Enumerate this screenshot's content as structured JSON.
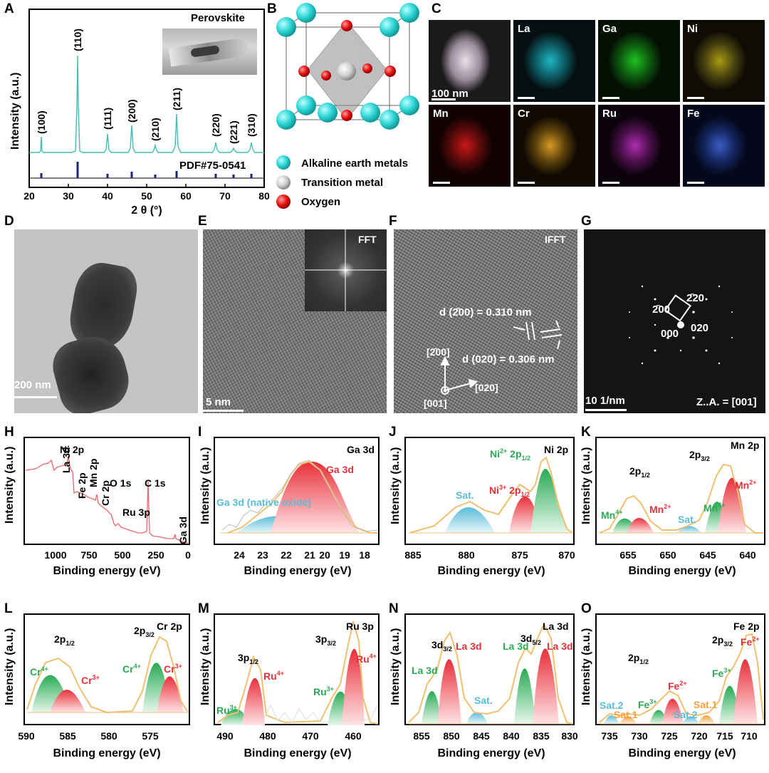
{
  "panel_letters": [
    "A",
    "B",
    "C",
    "D",
    "E",
    "F",
    "G",
    "H",
    "I",
    "J",
    "K",
    "L",
    "M",
    "N",
    "O"
  ],
  "panelA": {
    "inset_title": "Perovskite",
    "ylabel": "Intensity (a.u.)",
    "xlabel": "2 θ (°)",
    "xticks": [
      "20",
      "30",
      "40",
      "50",
      "60",
      "70",
      "80"
    ],
    "ref_label": "PDF#75-0541",
    "peak_labels": [
      "(100)",
      "(110)",
      "(111)",
      "(200)",
      "(210)",
      "(211)",
      "(220)",
      "(221)",
      "(310)"
    ]
  },
  "panelB": {
    "legend": [
      "Alkaline earth metals",
      "Transition metal",
      "Oxygen"
    ]
  },
  "panelC": {
    "scale": "100 nm",
    "elements": [
      "La",
      "Ga",
      "Ni",
      "Mn",
      "Cr",
      "Ru",
      "Fe"
    ]
  },
  "panelD": {
    "scale": "200 nm"
  },
  "panelE": {
    "scale": "5 nm",
    "inset": "FFT"
  },
  "panelF": {
    "title": "IFFT",
    "d200": "d (2̄00) = 0.310 nm",
    "d020": "d (020) = 0.306 nm",
    "dir_200": "[2̄00]",
    "dir_020": "[020]",
    "dir_001": "[001]"
  },
  "panelG": {
    "spots": [
      "2̄20",
      "2̄00",
      "000",
      "020"
    ],
    "scale": "10 1/nm",
    "zone": "Z..A. = [001]"
  },
  "xps_common": {
    "ylabel": "Intensity (a.u.)",
    "xlabel": "Binding energy (eV)"
  },
  "panelH": {
    "xticks": [
      "1000",
      "750",
      "500",
      "250",
      "0"
    ],
    "labels": [
      "Ni 2p",
      "La 3d",
      "Fe 2p",
      "Mn 2p",
      "Cr 2p",
      "O 1s",
      "Ru 3p",
      "C 1s",
      "Ga 3d"
    ]
  },
  "panelI": {
    "title": "Ga 3d",
    "xticks": [
      "24",
      "23",
      "22",
      "21",
      "20",
      "19",
      "18"
    ],
    "labels": [
      "Ga 3d",
      "Ga 3d (native oxide)"
    ]
  },
  "panelJ": {
    "title": "Ni 2p",
    "xticks": [
      "885",
      "880",
      "875",
      "870"
    ],
    "labels": [
      "Sat."
    ]
  },
  "panelK": {
    "title": "Mn 2p",
    "xticks": [
      "655",
      "650",
      "645",
      "640"
    ],
    "labels": [
      "Sat."
    ]
  },
  "panelL": {
    "title": "Cr 2p",
    "xticks": [
      "590",
      "585",
      "580",
      "575"
    ]
  },
  "panelM": {
    "title": "Ru 3p",
    "xticks": [
      "490",
      "480",
      "470",
      "460"
    ]
  },
  "panelN": {
    "title": "La 3d",
    "xticks": [
      "855",
      "850",
      "845",
      "840",
      "835",
      "830"
    ],
    "labels": [
      "La 3d",
      "La 3d",
      "La 3d",
      "La 3d",
      "Sat."
    ]
  },
  "panelO": {
    "title": "Fe 2p",
    "xticks": [
      "735",
      "730",
      "725",
      "720",
      "715",
      "710"
    ],
    "labels": [
      "Sat.2",
      "Sat.1",
      "Sat.2",
      "Sat.1"
    ]
  },
  "colors": {
    "xrd": "#3fbfb5",
    "ref": "#1a237e",
    "envelope": "#f0c070",
    "red": "#e8303a",
    "green": "#2aaa55",
    "blue": "#5bbcd8",
    "orange": "#f0a040",
    "survey": "#e8686a",
    "cyan_atom": "#2bd3d3"
  }
}
